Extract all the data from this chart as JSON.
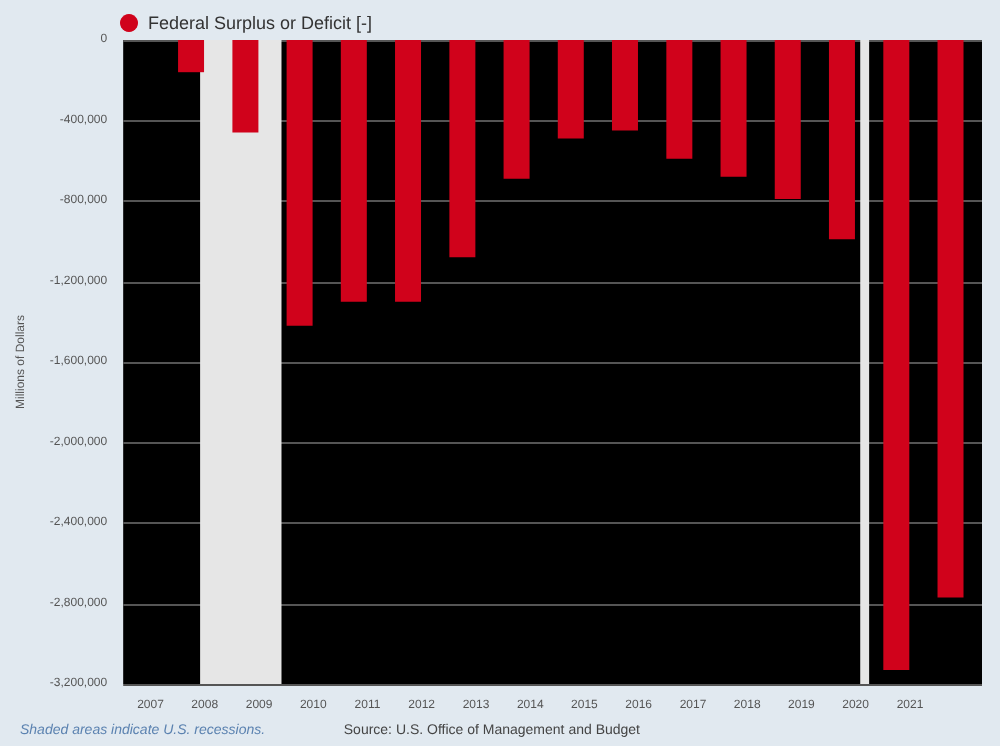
{
  "chart_data": {
    "type": "bar",
    "ylabel": "Millions of Dollars",
    "x": [
      "2007-10-01",
      "2008-10-01",
      "2009-10-01",
      "2010-10-01",
      "2011-10-01",
      "2012-10-01",
      "2013-10-01",
      "2014-10-01",
      "2015-10-01",
      "2016-10-01",
      "2017-10-01",
      "2018-10-01",
      "2019-10-01",
      "2020-10-01",
      "2021-10-01"
    ],
    "series": [
      {
        "name": "Federal Surplus or Deficit [-]",
        "color": "#d0021b",
        "values": [
          -160000,
          -460000,
          -1420000,
          -1300000,
          -1300000,
          -1080000,
          -690000,
          -490000,
          -450000,
          -590000,
          -680000,
          -790000,
          -990000,
          -3130000,
          -2770000
        ]
      }
    ],
    "xlim": [
      "2006-07-01",
      "2022-05-01"
    ],
    "xticks": [
      "2007",
      "2008",
      "2009",
      "2010",
      "2011",
      "2012",
      "2013",
      "2014",
      "2015",
      "2016",
      "2017",
      "2018",
      "2019",
      "2020",
      "2021"
    ],
    "ylim": [
      -3200000,
      0
    ],
    "yticks": [
      {
        "value": -3200000,
        "label": "-3,200,000"
      },
      {
        "value": -2800000,
        "label": "-2,800,000"
      },
      {
        "value": -2400000,
        "label": "-2,400,000"
      },
      {
        "value": -2000000,
        "label": "-2,000,000"
      },
      {
        "value": -1600000,
        "label": "-1,600,000"
      },
      {
        "value": -1200000,
        "label": "-1,200,000"
      },
      {
        "value": -800000,
        "label": "-800,000"
      },
      {
        "value": -400000,
        "label": "-400,000"
      },
      0
    ],
    "bands": [
      {
        "axis": "x",
        "from": "2007-12-01",
        "to": "2009-06-01",
        "color": "#e6e6e6"
      },
      {
        "axis": "x",
        "from": "2020-02-01",
        "to": "2020-04-01",
        "color": "#e6e6e6"
      }
    ],
    "grid": "y",
    "legend": "top left",
    "annotations": [
      "Shaded areas indicate U.S. recessions.",
      "Source: U.S. Office of Management and Budget"
    ]
  }
}
